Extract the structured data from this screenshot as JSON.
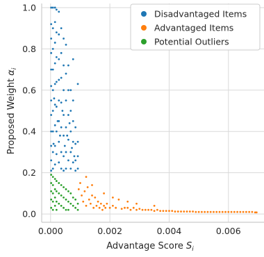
{
  "chart_data": {
    "type": "scatter",
    "xlabel_main": "Advantage Score ",
    "xlabel_var": "S",
    "xlabel_sub": "i",
    "ylabel_main": "Proposed Weight ",
    "ylabel_var": "α",
    "ylabel_sub": "i",
    "xlim": [
      -0.0003,
      0.0072
    ],
    "ylim": [
      -0.04,
      1.02
    ],
    "x_ticks": [
      0.0,
      0.002,
      0.004,
      0.006
    ],
    "x_tick_labels": [
      "0.000",
      "0.002",
      "0.004",
      "0.006"
    ],
    "y_ticks": [
      0.0,
      0.2,
      0.4,
      0.6,
      0.8,
      1.0
    ],
    "y_tick_labels": [
      "0.0",
      "0.2",
      "0.4",
      "0.6",
      "0.8",
      "1.0"
    ],
    "grid": true,
    "legend_position": "top-right",
    "series": [
      {
        "name": "Disadvantaged Items",
        "color": "#1f77b4",
        "points": [
          [
            2e-05,
            1.0
          ],
          [
            2e-05,
            0.92
          ],
          [
            2e-05,
            0.85
          ],
          [
            2e-05,
            0.78
          ],
          [
            2e-05,
            0.7
          ],
          [
            2e-05,
            0.62
          ],
          [
            2e-05,
            0.55
          ],
          [
            2e-05,
            0.48
          ],
          [
            2e-05,
            0.4
          ],
          [
            2e-05,
            0.33
          ],
          [
            2e-05,
            0.26
          ],
          [
            2e-05,
            0.21
          ],
          [
            8e-05,
            1.0
          ],
          [
            8e-05,
            0.9
          ],
          [
            8e-05,
            0.8
          ],
          [
            8e-05,
            0.7
          ],
          [
            8e-05,
            0.6
          ],
          [
            8e-05,
            0.5
          ],
          [
            8e-05,
            0.4
          ],
          [
            8e-05,
            0.3
          ],
          [
            8e-05,
            0.22
          ],
          [
            0.00015,
            1.0
          ],
          [
            0.00015,
            0.93
          ],
          [
            0.00015,
            0.83
          ],
          [
            0.00015,
            0.73
          ],
          [
            0.00015,
            0.63
          ],
          [
            0.00015,
            0.53
          ],
          [
            0.00015,
            0.43
          ],
          [
            0.00015,
            0.33
          ],
          [
            0.00015,
            0.24
          ],
          [
            0.0002,
            0.99
          ],
          [
            0.0002,
            0.88
          ],
          [
            0.0002,
            0.76
          ],
          [
            0.0002,
            0.64
          ],
          [
            0.0002,
            0.52
          ],
          [
            0.0002,
            0.4
          ],
          [
            0.0002,
            0.29
          ],
          [
            0.00028,
            0.98
          ],
          [
            0.00028,
            0.87
          ],
          [
            0.00028,
            0.75
          ],
          [
            0.00028,
            0.65
          ],
          [
            0.00028,
            0.55
          ],
          [
            0.00028,
            0.45
          ],
          [
            0.00028,
            0.35
          ],
          [
            0.00028,
            0.25
          ],
          [
            0.00036,
            0.9
          ],
          [
            0.00036,
            0.78
          ],
          [
            0.00036,
            0.66
          ],
          [
            0.00036,
            0.54
          ],
          [
            0.00036,
            0.42
          ],
          [
            0.00036,
            0.3
          ],
          [
            0.00036,
            0.22
          ],
          [
            0.00044,
            0.85
          ],
          [
            0.00044,
            0.72
          ],
          [
            0.00044,
            0.6
          ],
          [
            0.00044,
            0.48
          ],
          [
            0.00044,
            0.38
          ],
          [
            0.00044,
            0.28
          ],
          [
            0.00044,
            0.21
          ],
          [
            0.00052,
            0.82
          ],
          [
            0.00052,
            0.68
          ],
          [
            0.00052,
            0.55
          ],
          [
            0.00052,
            0.42
          ],
          [
            0.00052,
            0.3
          ],
          [
            0.00052,
            0.22
          ],
          [
            0.0006,
            0.72
          ],
          [
            0.0006,
            0.6
          ],
          [
            0.0006,
            0.48
          ],
          [
            0.0006,
            0.36
          ],
          [
            0.0006,
            0.26
          ],
          [
            0.00068,
            0.6
          ],
          [
            0.00068,
            0.5
          ],
          [
            0.00068,
            0.4
          ],
          [
            0.00068,
            0.3
          ],
          [
            0.00068,
            0.22
          ],
          [
            0.00076,
            0.75
          ],
          [
            0.00076,
            0.55
          ],
          [
            0.00076,
            0.45
          ],
          [
            0.00076,
            0.35
          ],
          [
            0.00076,
            0.25
          ],
          [
            0.00084,
            0.42
          ],
          [
            0.00084,
            0.34
          ],
          [
            0.00084,
            0.26
          ],
          [
            0.00084,
            0.21
          ],
          [
            0.00092,
            0.63
          ],
          [
            0.00092,
            0.35
          ],
          [
            0.00092,
            0.28
          ],
          [
            0.00092,
            0.22
          ],
          [
            0.0001,
            0.34
          ],
          [
            0.00012,
            0.56
          ],
          [
            0.00024,
            0.45
          ],
          [
            0.00032,
            0.38
          ],
          [
            0.0004,
            0.5
          ],
          [
            0.00048,
            0.33
          ],
          [
            0.00056,
            0.38
          ],
          [
            0.00064,
            0.44
          ],
          [
            0.00072,
            0.32
          ],
          [
            0.0008,
            0.28
          ]
        ]
      },
      {
        "name": "Advantaged Items",
        "color": "#ff7f0e",
        "points": [
          [
            0.00095,
            0.12
          ],
          [
            0.001,
            0.15
          ],
          [
            0.00105,
            0.09
          ],
          [
            0.0011,
            0.06
          ],
          [
            0.00115,
            0.11
          ],
          [
            0.0012,
            0.04
          ],
          [
            0.00125,
            0.13
          ],
          [
            0.0013,
            0.07
          ],
          [
            0.00135,
            0.05
          ],
          [
            0.0014,
            0.09
          ],
          [
            0.00145,
            0.03
          ],
          [
            0.0015,
            0.08
          ],
          [
            0.00155,
            0.04
          ],
          [
            0.0016,
            0.06
          ],
          [
            0.00165,
            0.03
          ],
          [
            0.0017,
            0.05
          ],
          [
            0.00175,
            0.02
          ],
          [
            0.0018,
            0.04
          ],
          [
            0.00185,
            0.03
          ],
          [
            0.0019,
            0.05
          ],
          [
            0.002,
            0.03
          ],
          [
            0.0021,
            0.04
          ],
          [
            0.0022,
            0.03
          ],
          [
            0.0023,
            0.07
          ],
          [
            0.0024,
            0.025
          ],
          [
            0.0025,
            0.03
          ],
          [
            0.0026,
            0.03
          ],
          [
            0.0027,
            0.02
          ],
          [
            0.0028,
            0.03
          ],
          [
            0.0029,
            0.02
          ],
          [
            0.003,
            0.025
          ],
          [
            0.0031,
            0.02
          ],
          [
            0.0032,
            0.02
          ],
          [
            0.0033,
            0.02
          ],
          [
            0.0034,
            0.02
          ],
          [
            0.0035,
            0.015
          ],
          [
            0.0036,
            0.02
          ],
          [
            0.0037,
            0.015
          ],
          [
            0.0038,
            0.015
          ],
          [
            0.0039,
            0.015
          ],
          [
            0.004,
            0.015
          ],
          [
            0.0041,
            0.015
          ],
          [
            0.0042,
            0.012
          ],
          [
            0.0043,
            0.012
          ],
          [
            0.0044,
            0.012
          ],
          [
            0.0045,
            0.012
          ],
          [
            0.0046,
            0.012
          ],
          [
            0.0047,
            0.012
          ],
          [
            0.0048,
            0.012
          ],
          [
            0.0049,
            0.01
          ],
          [
            0.005,
            0.01
          ],
          [
            0.0051,
            0.01
          ],
          [
            0.0052,
            0.01
          ],
          [
            0.0053,
            0.01
          ],
          [
            0.0054,
            0.01
          ],
          [
            0.0055,
            0.01
          ],
          [
            0.0056,
            0.01
          ],
          [
            0.0057,
            0.01
          ],
          [
            0.0058,
            0.01
          ],
          [
            0.0059,
            0.01
          ],
          [
            0.006,
            0.01
          ],
          [
            0.0061,
            0.01
          ],
          [
            0.0062,
            0.01
          ],
          [
            0.0063,
            0.01
          ],
          [
            0.0064,
            0.01
          ],
          [
            0.0065,
            0.01
          ],
          [
            0.0066,
            0.01
          ],
          [
            0.0067,
            0.01
          ],
          [
            0.0068,
            0.01
          ],
          [
            0.0069,
            0.008
          ],
          [
            0.00695,
            0.008
          ],
          [
            0.0012,
            0.18
          ],
          [
            0.0014,
            0.14
          ],
          [
            0.0018,
            0.1
          ],
          [
            0.0026,
            0.06
          ],
          [
            0.0021,
            0.08
          ],
          [
            0.0035,
            0.04
          ],
          [
            0.0029,
            0.05
          ]
        ]
      },
      {
        "name": "Potential Outliers",
        "color": "#2ca02c",
        "points": [
          [
            2e-05,
            0.19
          ],
          [
            2e-05,
            0.15
          ],
          [
            2e-05,
            0.11
          ],
          [
            2e-05,
            0.07
          ],
          [
            2e-05,
            0.03
          ],
          [
            8e-05,
            0.18
          ],
          [
            8e-05,
            0.14
          ],
          [
            8e-05,
            0.1
          ],
          [
            8e-05,
            0.06
          ],
          [
            8e-05,
            0.02
          ],
          [
            0.00015,
            0.17
          ],
          [
            0.00015,
            0.12
          ],
          [
            0.00015,
            0.08
          ],
          [
            0.00015,
            0.04
          ],
          [
            0.0002,
            0.16
          ],
          [
            0.0002,
            0.11
          ],
          [
            0.0002,
            0.06
          ],
          [
            0.0002,
            0.02
          ],
          [
            0.00028,
            0.15
          ],
          [
            0.00028,
            0.1
          ],
          [
            0.00028,
            0.05
          ],
          [
            0.00036,
            0.14
          ],
          [
            0.00036,
            0.09
          ],
          [
            0.00036,
            0.04
          ],
          [
            0.00044,
            0.13
          ],
          [
            0.00044,
            0.08
          ],
          [
            0.00044,
            0.03
          ],
          [
            0.00052,
            0.12
          ],
          [
            0.00052,
            0.07
          ],
          [
            0.00052,
            0.02
          ],
          [
            0.0006,
            0.11
          ],
          [
            0.0006,
            0.06
          ],
          [
            0.0006,
            0.02
          ],
          [
            0.00068,
            0.1
          ],
          [
            0.00068,
            0.05
          ],
          [
            0.00076,
            0.08
          ],
          [
            0.00076,
            0.04
          ],
          [
            0.00084,
            0.07
          ],
          [
            0.00084,
            0.03
          ],
          [
            0.00092,
            0.05
          ],
          [
            0.00092,
            0.02
          ]
        ]
      }
    ]
  }
}
